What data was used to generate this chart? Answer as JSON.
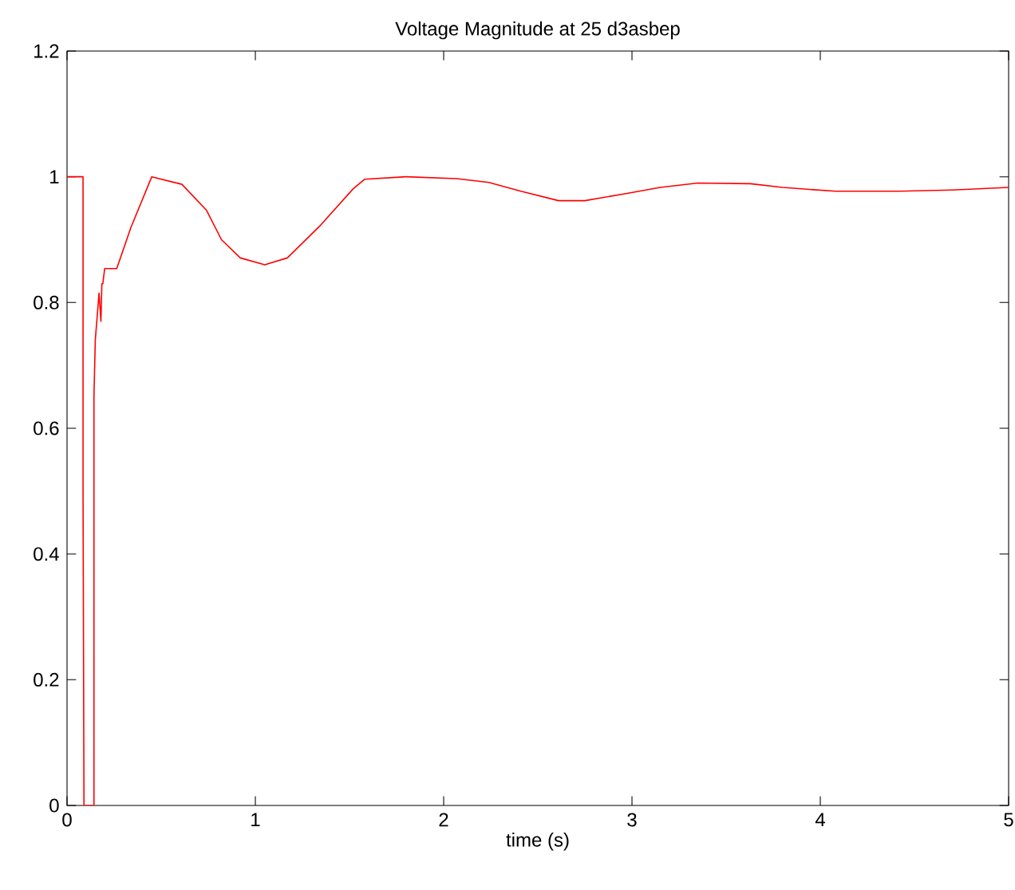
{
  "chart_data": {
    "type": "line",
    "title": "Voltage Magnitude at 25 d3asbep",
    "xlabel": "time (s)",
    "x": [
      0,
      0.085,
      0.085,
      0.09,
      0.143,
      0.143,
      0.15,
      0.17,
      0.18,
      0.185,
      0.19,
      0.2,
      0.264,
      0.34,
      0.45,
      0.61,
      0.74,
      0.82,
      0.92,
      1.05,
      1.17,
      1.34,
      1.52,
      1.58,
      1.8,
      2.07,
      2.24,
      2.41,
      2.61,
      2.75,
      2.98,
      3.15,
      3.35,
      3.63,
      3.8,
      4.08,
      4.42,
      4.7,
      5.0
    ],
    "series": [
      {
        "color": "#ff0000",
        "values": [
          1,
          1,
          0.5,
          0,
          0,
          0.65,
          0.74,
          0.815,
          0.77,
          0.83,
          0.83,
          0.854,
          0.854,
          0.92,
          1.0,
          0.988,
          0.947,
          0.9,
          0.871,
          0.86,
          0.871,
          0.921,
          0.981,
          0.996,
          1.0,
          0.997,
          0.991,
          0.977,
          0.962,
          0.962,
          0.974,
          0.983,
          0.99,
          0.989,
          0.983,
          0.977,
          0.977,
          0.979,
          0.983
        ]
      }
    ],
    "xlim": [
      0,
      5
    ],
    "ylim": [
      0,
      1.2
    ],
    "xticks": [
      0,
      1,
      2,
      3,
      4,
      5
    ],
    "yticks": [
      0,
      0.2,
      0.4,
      0.6,
      0.8,
      1,
      1.2
    ],
    "grid": false,
    "legend": false
  }
}
